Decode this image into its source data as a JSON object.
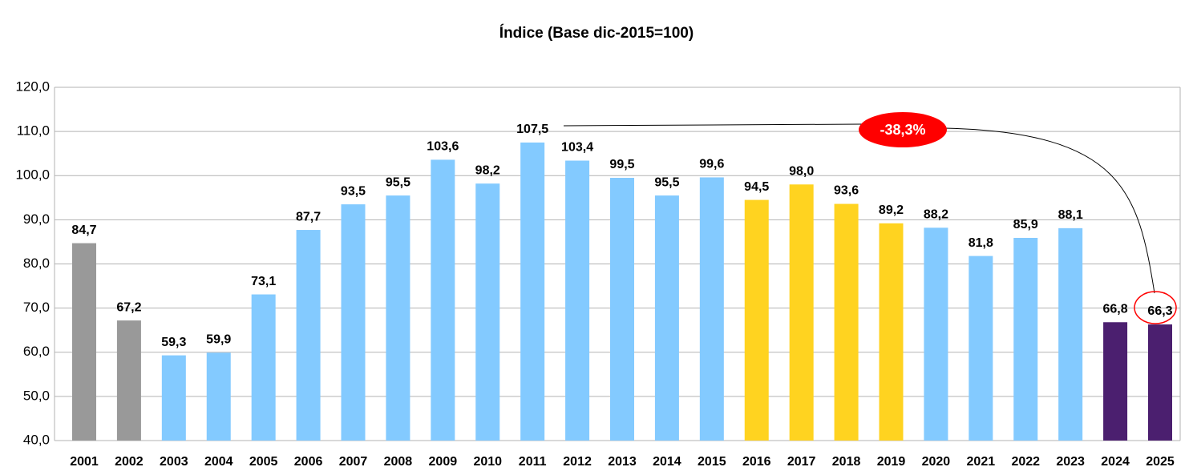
{
  "chart_data": {
    "type": "bar",
    "title": "Índice (Base dic-2015=100)",
    "categories": [
      "2001",
      "2002",
      "2003",
      "2004",
      "2005",
      "2006",
      "2007",
      "2008",
      "2009",
      "2010",
      "2011",
      "2012",
      "2013",
      "2014",
      "2015",
      "2016",
      "2017",
      "2018",
      "2019",
      "2020",
      "2021",
      "2022",
      "2023",
      "2024",
      "2025"
    ],
    "values": [
      84.7,
      67.2,
      59.3,
      59.9,
      73.1,
      87.7,
      93.5,
      95.5,
      103.6,
      98.2,
      107.5,
      103.4,
      99.5,
      95.5,
      99.6,
      94.5,
      98.0,
      93.6,
      89.2,
      88.2,
      81.8,
      85.9,
      88.1,
      66.8,
      66.3
    ],
    "value_labels": [
      "84,7",
      "67,2",
      "59,3",
      "59,9",
      "73,1",
      "87,7",
      "93,5",
      "95,5",
      "103,6",
      "98,2",
      "107,5",
      "103,4",
      "99,5",
      "95,5",
      "99,6",
      "94,5",
      "98,0",
      "93,6",
      "89,2",
      "88,2",
      "81,8",
      "85,9",
      "88,1",
      "66,8",
      "66,3"
    ],
    "colors": [
      "#999999",
      "#999999",
      "#83caff",
      "#83caff",
      "#83caff",
      "#83caff",
      "#83caff",
      "#83caff",
      "#83caff",
      "#83caff",
      "#83caff",
      "#83caff",
      "#83caff",
      "#83caff",
      "#83caff",
      "#ffd320",
      "#ffd320",
      "#ffd320",
      "#ffd320",
      "#83caff",
      "#83caff",
      "#83caff",
      "#83caff",
      "#4b1f6f",
      "#4b1f6f"
    ],
    "ylim": [
      40,
      120
    ],
    "yticks": [
      {
        "value": 40,
        "label": "40,0"
      },
      {
        "value": 50,
        "label": "50,0"
      },
      {
        "value": 60,
        "label": "60,0"
      },
      {
        "value": 70,
        "label": "70,0"
      },
      {
        "value": 80,
        "label": "80,0"
      },
      {
        "value": 90,
        "label": "90,0"
      },
      {
        "value": 100,
        "label": "100,0"
      },
      {
        "value": 110,
        "label": "110,0"
      },
      {
        "value": 120,
        "label": "120,0"
      }
    ],
    "grid": true,
    "annotation": "-38,3%"
  }
}
